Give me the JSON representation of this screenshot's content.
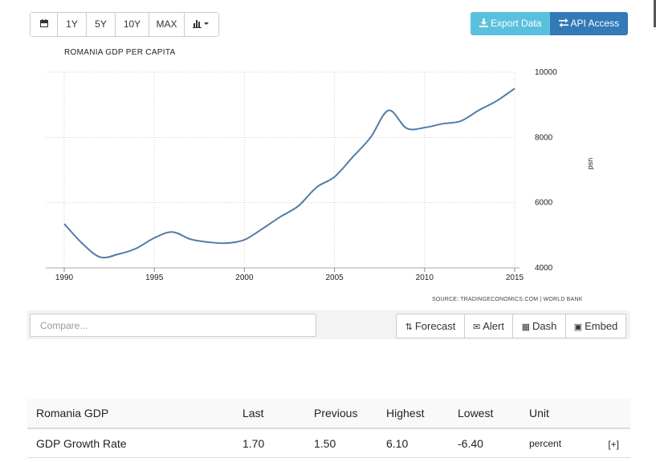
{
  "toolbar": {
    "range_buttons": [
      "1Y",
      "5Y",
      "10Y",
      "MAX"
    ],
    "export_label": "Export Data",
    "api_label": "API Access"
  },
  "icons": {
    "calendar": "calendar-icon",
    "chart_type": "bar-chart-dropdown-icon",
    "download": "download-icon",
    "exchange": "exchange-icon"
  },
  "chart_data": {
    "type": "line",
    "title": "ROMANIA GDP PER CAPITA",
    "ylabel": "usd",
    "source": "SOURCE: TRADINGECONOMICS.COM | WORLD BANK",
    "x_ticks": [
      1990,
      1995,
      2000,
      2005,
      2010,
      2015
    ],
    "y_ticks": [
      4000,
      6000,
      8000,
      10000
    ],
    "xlim": [
      1990,
      2015
    ],
    "ylim": [
      4000,
      10000
    ],
    "grid": true,
    "color": "#4f7ca8",
    "series": [
      {
        "x": [
          1990,
          1991,
          1992,
          1993,
          1994,
          1995,
          1996,
          1997,
          1998,
          1999,
          2000,
          2001,
          2002,
          2003,
          2004,
          2005,
          2006,
          2007,
          2008,
          2009,
          2010,
          2011,
          2012,
          2013,
          2014,
          2015
        ],
        "values": [
          5350,
          4750,
          4330,
          4420,
          4600,
          4920,
          5100,
          4880,
          4790,
          4760,
          4860,
          5200,
          5570,
          5900,
          6470,
          6790,
          7390,
          8000,
          8830,
          8280,
          8300,
          8420,
          8500,
          8830,
          9120,
          9500
        ]
      }
    ]
  },
  "actions": {
    "compare_placeholder": "Compare...",
    "forecast": "Forecast",
    "alert": "Alert",
    "dash": "Dash",
    "embed": "Embed"
  },
  "table": {
    "headers": [
      "Romania GDP",
      "Last",
      "Previous",
      "Highest",
      "Lowest",
      "Unit"
    ],
    "rows": [
      {
        "name": "GDP Growth Rate",
        "last": "1.70",
        "previous": "1.50",
        "highest": "6.10",
        "lowest": "-6.40",
        "unit": "percent",
        "expand": "[+]"
      }
    ]
  }
}
